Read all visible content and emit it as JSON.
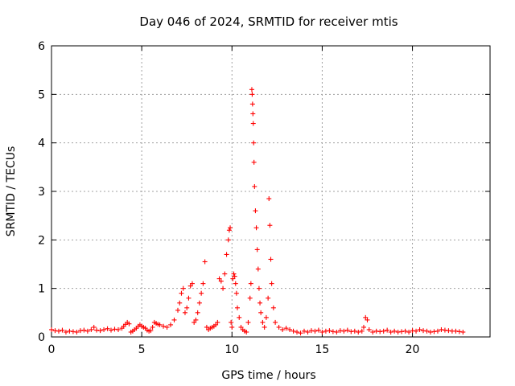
{
  "chart_data": {
    "type": "scatter",
    "title": "Day 046 of 2024, SRMTID for receiver mtis",
    "xlabel": "GPS time / hours",
    "ylabel": "SRMTID / TECUs",
    "xlim": [
      0,
      24.3
    ],
    "ylim": [
      0,
      6
    ],
    "xticks": [
      0,
      5,
      10,
      15,
      20
    ],
    "yticks": [
      0,
      1,
      2,
      3,
      4,
      5,
      6
    ],
    "grid": true,
    "marker": "+",
    "color": "#ff0000",
    "series": [
      {
        "name": "mtis",
        "x": [
          0.0,
          0.2,
          0.4,
          0.6,
          0.8,
          1.0,
          1.2,
          1.4,
          1.6,
          1.8,
          2.0,
          2.2,
          2.35,
          2.5,
          2.7,
          2.9,
          3.1,
          3.3,
          3.5,
          3.7,
          3.9,
          4.0,
          4.1,
          4.2,
          4.3,
          4.4,
          4.5,
          4.6,
          4.7,
          4.8,
          4.9,
          5.0,
          5.1,
          5.2,
          5.3,
          5.4,
          5.5,
          5.6,
          5.7,
          5.8,
          5.9,
          6.0,
          6.2,
          6.4,
          6.6,
          6.8,
          7.0,
          7.1,
          7.2,
          7.3,
          7.4,
          7.5,
          7.6,
          7.7,
          7.8,
          7.9,
          8.0,
          8.1,
          8.2,
          8.3,
          8.4,
          8.5,
          8.6,
          8.7,
          8.8,
          8.9,
          9.0,
          9.1,
          9.2,
          9.3,
          9.4,
          9.5,
          9.6,
          9.7,
          9.8,
          9.85,
          9.9,
          9.95,
          10.0,
          10.05,
          10.1,
          10.15,
          10.2,
          10.25,
          10.3,
          10.4,
          10.5,
          10.6,
          10.7,
          10.8,
          10.9,
          11.0,
          11.05,
          11.1,
          11.12,
          11.14,
          11.16,
          11.18,
          11.2,
          11.22,
          11.25,
          11.3,
          11.35,
          11.4,
          11.45,
          11.5,
          11.55,
          11.6,
          11.7,
          11.8,
          11.9,
          12.0,
          12.05,
          12.1,
          12.15,
          12.2,
          12.3,
          12.4,
          12.6,
          12.8,
          13.0,
          13.2,
          13.4,
          13.6,
          13.8,
          14.0,
          14.2,
          14.4,
          14.6,
          14.8,
          15.0,
          15.2,
          15.4,
          15.6,
          15.8,
          16.0,
          16.2,
          16.4,
          16.6,
          16.8,
          17.0,
          17.2,
          17.3,
          17.4,
          17.5,
          17.6,
          17.8,
          18.0,
          18.2,
          18.4,
          18.6,
          18.8,
          19.0,
          19.2,
          19.4,
          19.6,
          19.8,
          20.0,
          20.2,
          20.4,
          20.6,
          20.8,
          21.0,
          21.2,
          21.4,
          21.6,
          21.8,
          22.0,
          22.2,
          22.4,
          22.6,
          22.8
        ],
        "y": [
          0.15,
          0.13,
          0.12,
          0.14,
          0.1,
          0.12,
          0.11,
          0.1,
          0.13,
          0.14,
          0.12,
          0.15,
          0.2,
          0.14,
          0.13,
          0.15,
          0.17,
          0.14,
          0.16,
          0.15,
          0.18,
          0.22,
          0.26,
          0.3,
          0.27,
          0.1,
          0.12,
          0.15,
          0.18,
          0.22,
          0.25,
          0.22,
          0.2,
          0.18,
          0.14,
          0.12,
          0.13,
          0.2,
          0.3,
          0.28,
          0.26,
          0.25,
          0.22,
          0.2,
          0.25,
          0.35,
          0.55,
          0.7,
          0.9,
          1.0,
          0.5,
          0.6,
          0.8,
          1.05,
          1.1,
          0.3,
          0.35,
          0.5,
          0.7,
          0.9,
          1.1,
          1.55,
          0.2,
          0.15,
          0.18,
          0.2,
          0.22,
          0.25,
          0.3,
          1.2,
          1.15,
          1.0,
          1.3,
          1.7,
          2.0,
          2.2,
          2.25,
          0.3,
          0.2,
          1.2,
          1.3,
          1.25,
          1.1,
          0.9,
          0.6,
          0.4,
          0.2,
          0.15,
          0.12,
          0.1,
          0.3,
          0.8,
          1.1,
          5.1,
          5.0,
          4.8,
          4.6,
          4.4,
          4.0,
          3.6,
          3.1,
          2.6,
          2.25,
          1.8,
          1.4,
          1.0,
          0.7,
          0.5,
          0.3,
          0.2,
          0.4,
          0.8,
          2.85,
          2.3,
          1.6,
          1.1,
          0.6,
          0.3,
          0.2,
          0.15,
          0.18,
          0.15,
          0.12,
          0.1,
          0.08,
          0.12,
          0.1,
          0.13,
          0.12,
          0.14,
          0.1,
          0.12,
          0.13,
          0.11,
          0.1,
          0.13,
          0.12,
          0.14,
          0.11,
          0.12,
          0.1,
          0.12,
          0.2,
          0.4,
          0.35,
          0.15,
          0.1,
          0.12,
          0.11,
          0.12,
          0.14,
          0.1,
          0.12,
          0.1,
          0.11,
          0.12,
          0.1,
          0.13,
          0.12,
          0.15,
          0.13,
          0.12,
          0.1,
          0.11,
          0.12,
          0.15,
          0.14,
          0.13,
          0.12,
          0.12,
          0.11,
          0.1
        ]
      }
    ]
  }
}
